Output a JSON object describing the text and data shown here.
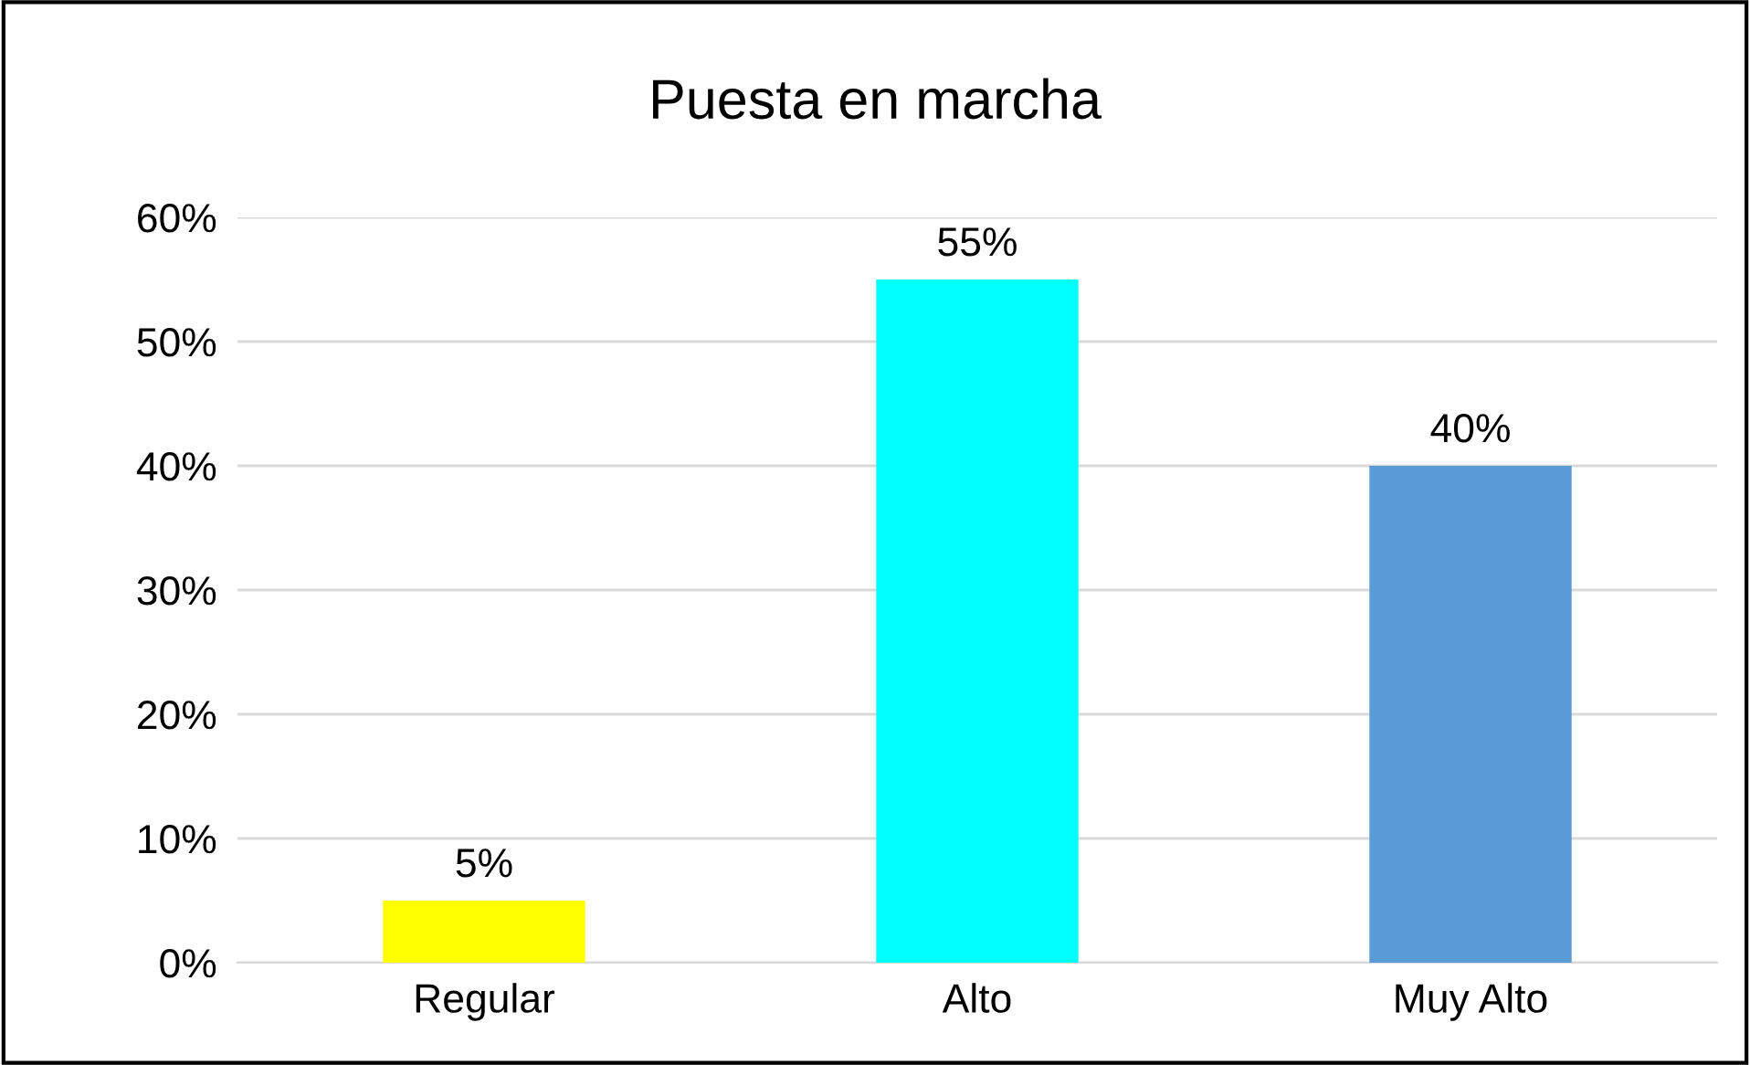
{
  "chart_data": {
    "type": "bar",
    "title": "Puesta en marcha",
    "categories": [
      "Regular",
      "Alto",
      "Muy Alto"
    ],
    "values": [
      5,
      55,
      40
    ],
    "colors": [
      "#ffff00",
      "#00ffff",
      "#5b9bd5"
    ],
    "value_labels": [
      "5%",
      "55%",
      "40%"
    ],
    "ylim": [
      0,
      60
    ],
    "yticks": [
      {
        "value": 0,
        "label": "0%"
      },
      {
        "value": 10,
        "label": "10%"
      },
      {
        "value": 20,
        "label": "20%"
      },
      {
        "value": 30,
        "label": "30%"
      },
      {
        "value": 40,
        "label": "40%"
      },
      {
        "value": 50,
        "label": "50%"
      },
      {
        "value": 60,
        "label": "60%"
      }
    ],
    "grid": "y",
    "legend": false
  }
}
